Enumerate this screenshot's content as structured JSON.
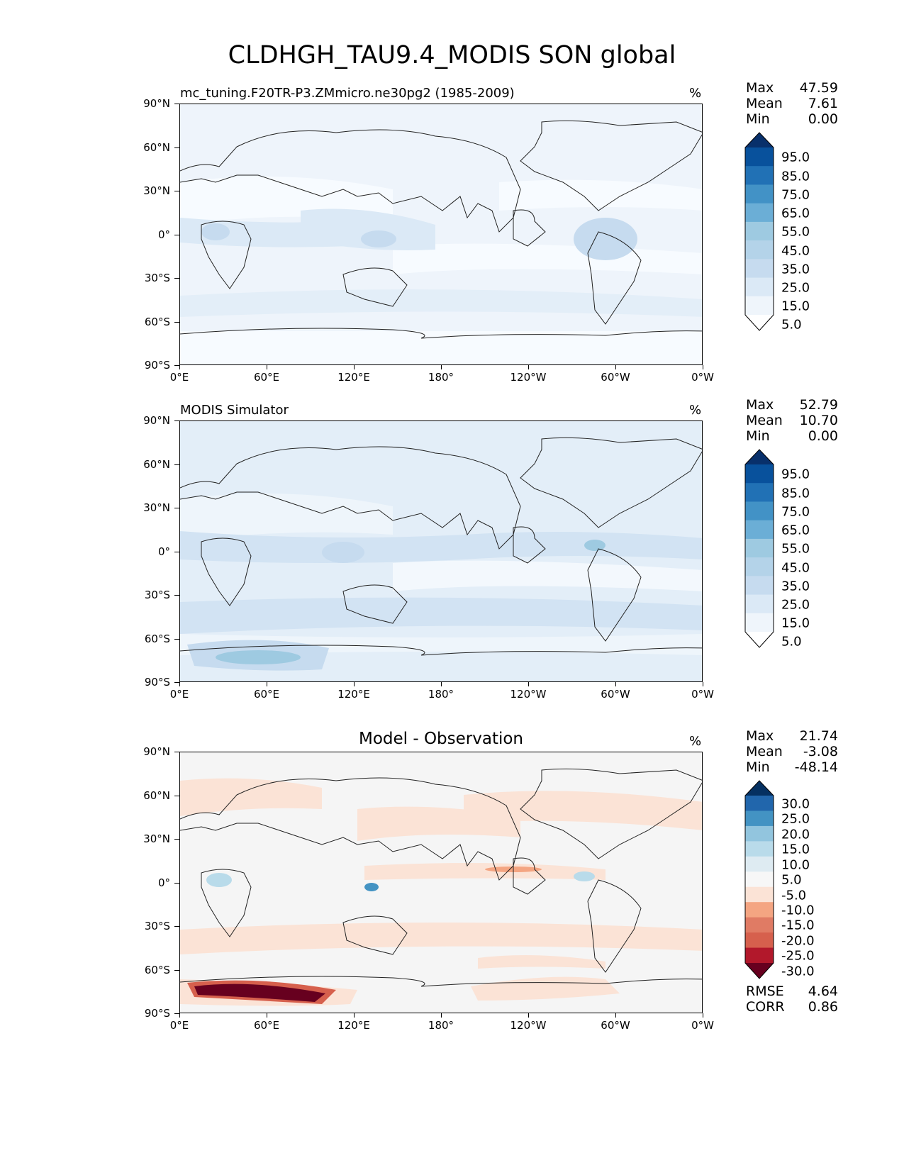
{
  "title": "CLDHGH_TAU9.4_MODIS SON global",
  "lat_labels": [
    "90°N",
    "60°N",
    "30°N",
    "0°",
    "30°S",
    "60°S",
    "90°S"
  ],
  "lon_labels": [
    "0°E",
    "60°E",
    "120°E",
    "180°",
    "120°W",
    "60°W",
    "0°W"
  ],
  "units": "%",
  "stat_labels": {
    "max": "Max",
    "mean": "Mean",
    "min": "Min",
    "rmse": "RMSE",
    "corr": "CORR"
  },
  "panels": [
    {
      "title": "mc_tuning.F20TR-P3.ZMmicro.ne30pg2 (1985-2009)",
      "max": "47.59",
      "mean": "7.61",
      "min": "0.00",
      "colorbar_labels": [
        "95.0",
        "85.0",
        "75.0",
        "65.0",
        "55.0",
        "45.0",
        "35.0",
        "25.0",
        "15.0",
        "5.0"
      ],
      "colorbar_colors": [
        "#08306b",
        "#08519c",
        "#2171b5",
        "#4292c6",
        "#6baed6",
        "#9ecae1",
        "#b4d3e9",
        "#c6dbef",
        "#dbe9f6",
        "#eff5fb",
        "#ffffff"
      ]
    },
    {
      "title": "MODIS Simulator",
      "max": "52.79",
      "mean": "10.70",
      "min": "0.00",
      "colorbar_labels": [
        "95.0",
        "85.0",
        "75.0",
        "65.0",
        "55.0",
        "45.0",
        "35.0",
        "25.0",
        "15.0",
        "5.0"
      ],
      "colorbar_colors": [
        "#08306b",
        "#08519c",
        "#2171b5",
        "#4292c6",
        "#6baed6",
        "#9ecae1",
        "#b4d3e9",
        "#c6dbef",
        "#dbe9f6",
        "#eff5fb",
        "#ffffff"
      ]
    },
    {
      "title": "Model - Observation",
      "max": "21.74",
      "mean": "-3.08",
      "min": "-48.14",
      "rmse": "4.64",
      "corr": "0.86",
      "colorbar_labels": [
        "30.0",
        "25.0",
        "20.0",
        "15.0",
        "10.0",
        "5.0",
        "-5.0",
        "-10.0",
        "-15.0",
        "-20.0",
        "-25.0",
        "-30.0"
      ],
      "colorbar_colors": [
        "#053061",
        "#2166ac",
        "#4393c3",
        "#92c5de",
        "#b9dbea",
        "#deebf2",
        "#f7f7f7",
        "#fbe3d6",
        "#f4a582",
        "#e07b64",
        "#d6604d",
        "#b2182b",
        "#67001f"
      ]
    }
  ]
}
